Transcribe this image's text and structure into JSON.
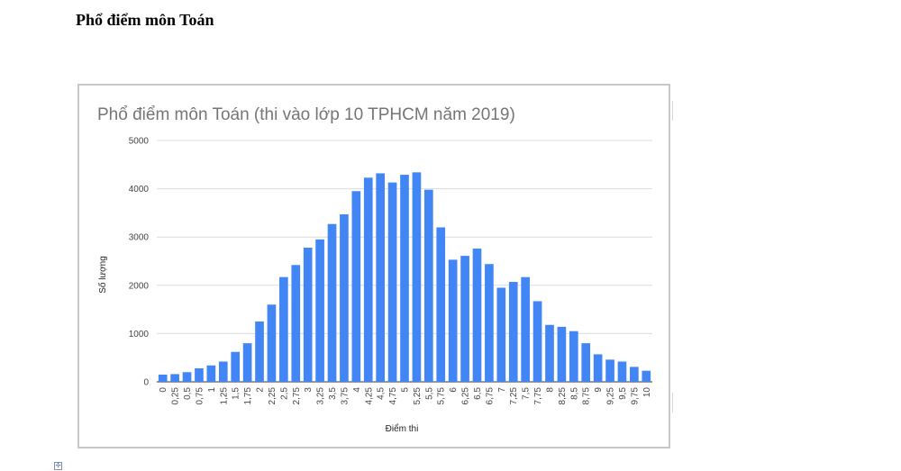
{
  "document": {
    "heading": "Phổ điểm môn Toán"
  },
  "icons": {
    "corner_icon": "anchor-icon"
  },
  "chart_data": {
    "type": "bar",
    "title": "Phổ điểm môn Toán (thi vào lớp 10 TPHCM năm 2019)",
    "xlabel": "Điểm thi",
    "ylabel": "Số lượng",
    "ylim": [
      0,
      5000
    ],
    "yticks": [
      "0",
      "1000",
      "2000",
      "3000",
      "4000",
      "5000"
    ],
    "grid": true,
    "legend": "none",
    "color": "#4285f4",
    "categories": [
      "0",
      "0,25",
      "0,5",
      "0,75",
      "1",
      "1,25",
      "1,5",
      "1,75",
      "2",
      "2,25",
      "2,5",
      "2,75",
      "3",
      "3,25",
      "3,5",
      "3,75",
      "4",
      "4,25",
      "4,5",
      "4,75",
      "5",
      "5,25",
      "5,5",
      "5,75",
      "6",
      "6,25",
      "6,5",
      "6,75",
      "7",
      "7,25",
      "7,5",
      "7,75",
      "8",
      "8,25",
      "8,5",
      "8,75",
      "9",
      "9,25",
      "9,5",
      "9,75",
      "10"
    ],
    "values": [
      150,
      160,
      200,
      280,
      340,
      420,
      620,
      800,
      1250,
      1600,
      2170,
      2420,
      2780,
      2950,
      3270,
      3470,
      3950,
      4230,
      4320,
      4130,
      4290,
      4340,
      3980,
      3200,
      2530,
      2610,
      2760,
      2440,
      1950,
      2070,
      2170,
      1670,
      1180,
      1140,
      1050,
      800,
      570,
      460,
      420,
      310,
      230
    ]
  }
}
